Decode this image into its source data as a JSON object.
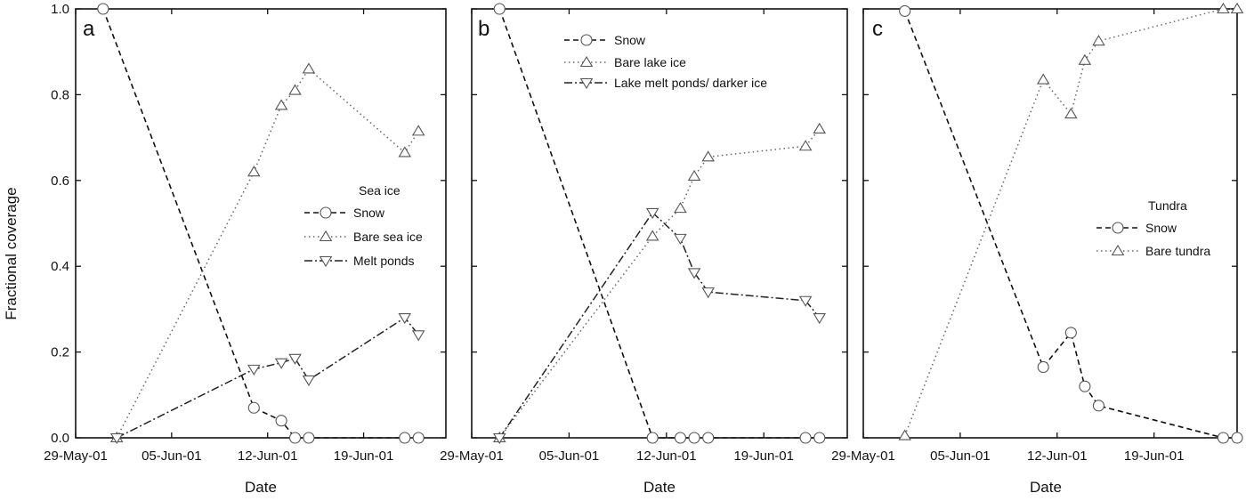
{
  "figure": {
    "y_axis_label": "Fractional coverage",
    "y_ticks": [
      "0.0",
      "0.2",
      "0.4",
      "0.6",
      "0.8",
      "1.0"
    ],
    "panels": [
      {
        "letter": "a",
        "x_axis_label": "Date",
        "x_ticks": [
          "29-May-01",
          "05-Jun-01",
          "12-Jun-01",
          "19-Jun-01"
        ],
        "legend_title": "Sea ice",
        "legend_entries": [
          "Snow",
          "Bare sea ice",
          "Melt ponds"
        ]
      },
      {
        "letter": "b",
        "x_axis_label": "Date",
        "x_ticks": [
          "29-May-01",
          "05-Jun-01",
          "12-Jun-01",
          "19-Jun-01"
        ],
        "legend_title": "",
        "legend_entries": [
          "Snow",
          "Bare lake ice",
          "Lake melt ponds/ darker ice"
        ]
      },
      {
        "letter": "c",
        "x_axis_label": "Date",
        "x_ticks": [
          "29-May-01",
          "05-Jun-01",
          "12-Jun-01",
          "19-Jun-01"
        ],
        "legend_title": "Tundra",
        "legend_entries": [
          "Snow",
          "Bare tundra"
        ]
      }
    ]
  },
  "chart_data": [
    {
      "type": "line",
      "panel": "a",
      "xlabel": "Date",
      "ylabel": "Fractional coverage",
      "xlim": [
        "2001-05-29",
        "2001-06-25"
      ],
      "ylim": [
        0,
        1.0
      ],
      "legend_title": "Sea ice",
      "legend_position": "right",
      "series": [
        {
          "name": "Snow",
          "marker": "circle",
          "points": [
            [
              "2001-05-31",
              1.0
            ],
            [
              "2001-06-11",
              0.07
            ],
            [
              "2001-06-13",
              0.04
            ],
            [
              "2001-06-14",
              0.0
            ],
            [
              "2001-06-15",
              0.0
            ],
            [
              "2001-06-22",
              0.0
            ],
            [
              "2001-06-23",
              0.0
            ]
          ]
        },
        {
          "name": "Bare sea ice",
          "marker": "triangle-up",
          "points": [
            [
              "2001-06-01",
              0.0
            ],
            [
              "2001-06-11",
              0.62
            ],
            [
              "2001-06-13",
              0.775
            ],
            [
              "2001-06-14",
              0.81
            ],
            [
              "2001-06-15",
              0.86
            ],
            [
              "2001-06-22",
              0.665
            ],
            [
              "2001-06-23",
              0.715
            ]
          ]
        },
        {
          "name": "Melt ponds",
          "marker": "triangle-down",
          "points": [
            [
              "2001-06-01",
              0.0
            ],
            [
              "2001-06-11",
              0.16
            ],
            [
              "2001-06-13",
              0.175
            ],
            [
              "2001-06-14",
              0.185
            ],
            [
              "2001-06-15",
              0.135
            ],
            [
              "2001-06-22",
              0.28
            ],
            [
              "2001-06-23",
              0.24
            ]
          ]
        }
      ]
    },
    {
      "type": "line",
      "panel": "b",
      "xlabel": "Date",
      "ylabel": "",
      "xlim": [
        "2001-05-29",
        "2001-06-25"
      ],
      "ylim": [
        0,
        1.0
      ],
      "legend_title": "",
      "legend_position": "top-right",
      "series": [
        {
          "name": "Snow",
          "marker": "circle",
          "points": [
            [
              "2001-05-31",
              1.0
            ],
            [
              "2001-06-11",
              0.0
            ],
            [
              "2001-06-13",
              0.0
            ],
            [
              "2001-06-14",
              0.0
            ],
            [
              "2001-06-15",
              0.0
            ],
            [
              "2001-06-22",
              0.0
            ],
            [
              "2001-06-23",
              0.0
            ]
          ]
        },
        {
          "name": "Bare lake ice",
          "marker": "triangle-up",
          "points": [
            [
              "2001-05-31",
              0.0
            ],
            [
              "2001-06-11",
              0.47
            ],
            [
              "2001-06-13",
              0.535
            ],
            [
              "2001-06-14",
              0.61
            ],
            [
              "2001-06-15",
              0.655
            ],
            [
              "2001-06-22",
              0.68
            ],
            [
              "2001-06-23",
              0.72
            ]
          ]
        },
        {
          "name": "Lake melt ponds/ darker ice",
          "marker": "triangle-down",
          "points": [
            [
              "2001-05-31",
              0.0
            ],
            [
              "2001-06-11",
              0.525
            ],
            [
              "2001-06-13",
              0.465
            ],
            [
              "2001-06-14",
              0.385
            ],
            [
              "2001-06-15",
              0.34
            ],
            [
              "2001-06-22",
              0.32
            ],
            [
              "2001-06-23",
              0.28
            ]
          ]
        }
      ]
    },
    {
      "type": "line",
      "panel": "c",
      "xlabel": "Date",
      "ylabel": "",
      "xlim": [
        "2001-05-29",
        "2001-06-25"
      ],
      "ylim": [
        0,
        1.0
      ],
      "legend_title": "Tundra",
      "legend_position": "right",
      "series": [
        {
          "name": "Snow",
          "marker": "circle",
          "points": [
            [
              "2001-06-01",
              0.995
            ],
            [
              "2001-06-11",
              0.165
            ],
            [
              "2001-06-13",
              0.245
            ],
            [
              "2001-06-14",
              0.12
            ],
            [
              "2001-06-15",
              0.075
            ],
            [
              "2001-06-24",
              0.0
            ],
            [
              "2001-06-25",
              0.0
            ]
          ]
        },
        {
          "name": "Bare tundra",
          "marker": "triangle-up",
          "points": [
            [
              "2001-06-01",
              0.005
            ],
            [
              "2001-06-11",
              0.835
            ],
            [
              "2001-06-13",
              0.755
            ],
            [
              "2001-06-14",
              0.88
            ],
            [
              "2001-06-15",
              0.925
            ],
            [
              "2001-06-24",
              1.0
            ],
            [
              "2001-06-25",
              1.0
            ]
          ]
        }
      ]
    }
  ]
}
